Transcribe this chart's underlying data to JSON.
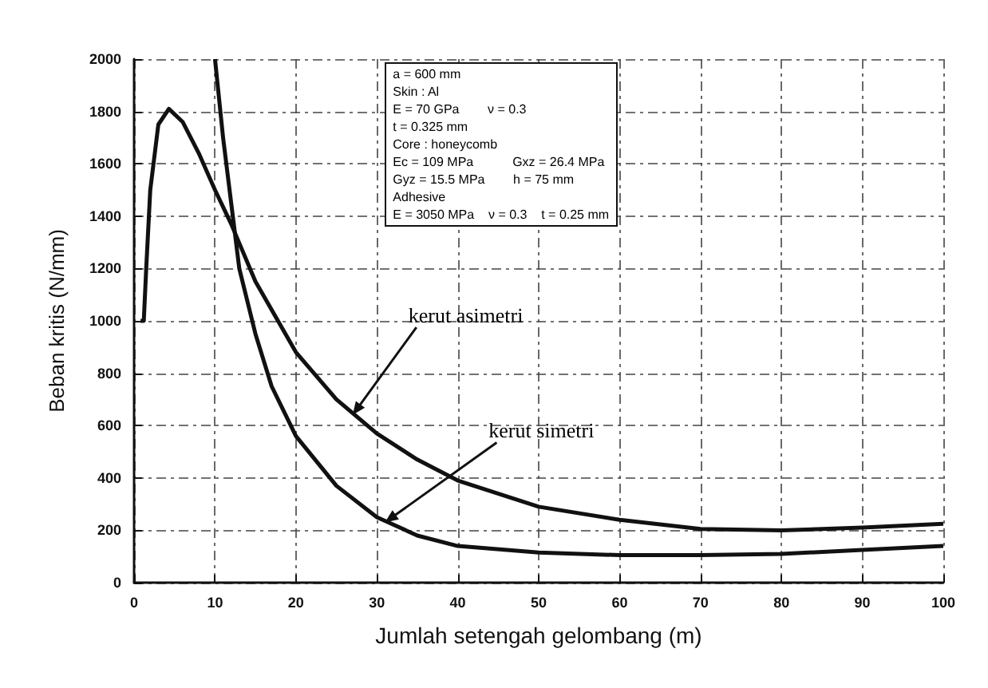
{
  "chart_data": {
    "type": "line",
    "xlabel": "Jumlah setengah gelombang (m)",
    "ylabel": "Beban kritis (N/mm)",
    "xlim": [
      0,
      100
    ],
    "xticks": [
      0,
      10,
      20,
      30,
      40,
      50,
      60,
      70,
      80,
      90,
      100
    ],
    "ylim": [
      0,
      2000
    ],
    "yticks": [
      0,
      200,
      400,
      600,
      800,
      1000,
      1200,
      1400,
      1600,
      1800,
      2000
    ],
    "grid": true,
    "marker": "none",
    "line_style": "solid",
    "series": [
      {
        "color": "#111111",
        "x": [
          0.8,
          1.2,
          1.5,
          2,
          3,
          4.3,
          6,
          8,
          10,
          12,
          15,
          20,
          25,
          30,
          35,
          40,
          50,
          60,
          70,
          80,
          90,
          100
        ],
        "values": [
          1000,
          1000,
          1200,
          1500,
          1750,
          1810,
          1760,
          1640,
          1500,
          1370,
          1150,
          880,
          700,
          570,
          470,
          390,
          290,
          240,
          205,
          200,
          210,
          225
        ]
      },
      {
        "color": "#111111",
        "x": [
          10,
          11,
          12,
          13,
          15,
          17,
          20,
          25,
          30,
          35,
          40,
          50,
          60,
          70,
          80,
          90,
          100
        ],
        "values": [
          2000,
          1700,
          1450,
          1200,
          950,
          750,
          560,
          370,
          250,
          180,
          140,
          115,
          105,
          105,
          110,
          125,
          140
        ]
      }
    ],
    "annotations": [
      {
        "text": "kerut asimetri",
        "x": 27,
        "y": 640
      },
      {
        "text": "kerut simetri",
        "x": 31,
        "y": 230
      },
      "a = 600 mm",
      "Skin : Al",
      "E = 70 GPa        ν = 0.3",
      "t = 0.325 mm",
      "Core : honeycomb",
      "Ec = 109 MPa           Gxz = 26.4 MPa",
      "Gyz = 15.5 MPa        h = 75 mm",
      "Adhesive",
      "E = 3050 MPa    ν = 0.3    t = 0.25 mm"
    ]
  }
}
